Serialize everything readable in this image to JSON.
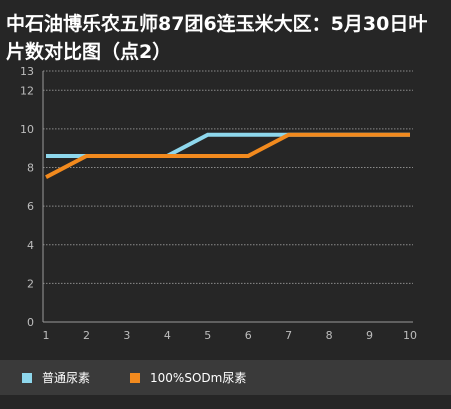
{
  "chart_data": {
    "type": "line",
    "title": "中石油博乐农五师87团6连玉米大区：5月30日叶片数对比图（点2）",
    "categories": [
      "1",
      "2",
      "3",
      "4",
      "5",
      "6",
      "7",
      "8",
      "9",
      "10"
    ],
    "ylim": [
      0,
      13
    ],
    "yticks": [
      0,
      2,
      4,
      6,
      8,
      10,
      12,
      13
    ],
    "grid": true,
    "legend_position": "bottom",
    "series": [
      {
        "name": "普通尿素",
        "color": "#8ed7ec",
        "values": [
          8.6,
          8.6,
          8.6,
          8.6,
          9.7,
          9.7,
          9.7,
          9.7,
          9.7,
          9.7
        ]
      },
      {
        "name": "100%SODm尿素",
        "color": "#f28a1e",
        "values": [
          7.5,
          8.6,
          8.6,
          8.6,
          8.6,
          8.6,
          9.7,
          9.7,
          9.7,
          9.7
        ]
      }
    ]
  }
}
